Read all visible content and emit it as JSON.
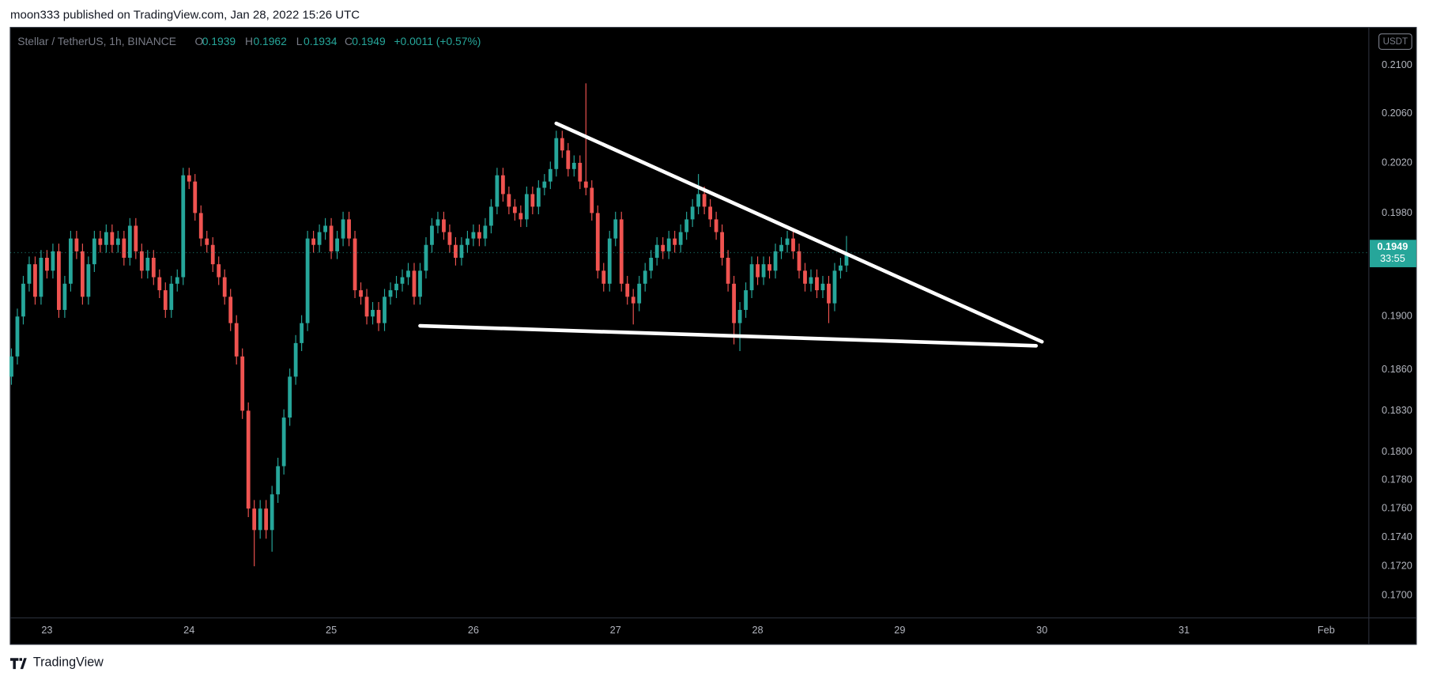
{
  "header": {
    "published": "moon333 published on TradingView.com, Jan 28, 2022 15:26 UTC"
  },
  "footer": {
    "brand": "TradingView"
  },
  "chart_data": {
    "type": "candlestick",
    "title": "Stellar / TetherUS, 1h, BINANCE",
    "ohlc_letters": [
      "O",
      "H",
      "L",
      "C"
    ],
    "change": "+0.0011 (+0.57%)",
    "currency": "USDT",
    "countdown": "33:55",
    "up_color": "#26a69a",
    "down_color": "#ef5350",
    "log_scale": true,
    "grid": false,
    "x": [
      -6,
      -5,
      -4,
      -3,
      -2,
      -1,
      0,
      1,
      2,
      3,
      4,
      5,
      6,
      7,
      8,
      9,
      10,
      11,
      12,
      13,
      14,
      15,
      16,
      17,
      18,
      19,
      20,
      21,
      22,
      23,
      24,
      25,
      26,
      27,
      28,
      29,
      30,
      31,
      32,
      33,
      34,
      35,
      36,
      37,
      38,
      39,
      40,
      41,
      42,
      43,
      44,
      45,
      46,
      47,
      48,
      49,
      50,
      51,
      52,
      53,
      54,
      55,
      56,
      57,
      58,
      59,
      60,
      61,
      62,
      63,
      64,
      65,
      66,
      67,
      68,
      69,
      70,
      71,
      72,
      73,
      74,
      75,
      76,
      77,
      78,
      79,
      80,
      81,
      82,
      83,
      84,
      85,
      86,
      87,
      88,
      89,
      90,
      91,
      92,
      93,
      94,
      95,
      96,
      97,
      98,
      99,
      100,
      101,
      102,
      103,
      104,
      105,
      106,
      107,
      108,
      109,
      110,
      111,
      112,
      113,
      114,
      115,
      116,
      117,
      118,
      119,
      120,
      121,
      122,
      123,
      124,
      125,
      126,
      127,
      128,
      129,
      130,
      131,
      132,
      133,
      134,
      135
    ],
    "open": [
      0.1855,
      0.187,
      0.19,
      0.1925,
      0.194,
      0.1915,
      0.1945,
      0.1935,
      0.195,
      0.1905,
      0.1925,
      0.196,
      0.195,
      0.1915,
      0.194,
      0.196,
      0.1955,
      0.1965,
      0.1955,
      0.196,
      0.1945,
      0.197,
      0.195,
      0.1935,
      0.1945,
      0.193,
      0.192,
      0.1905,
      0.1925,
      0.193,
      0.201,
      0.2005,
      0.198,
      0.196,
      0.1955,
      0.194,
      0.193,
      0.1915,
      0.1895,
      0.187,
      0.183,
      0.176,
      0.1745,
      0.176,
      0.1745,
      0.177,
      0.179,
      0.1825,
      0.1855,
      0.188,
      0.1895,
      0.196,
      0.1955,
      0.1965,
      0.197,
      0.195,
      0.196,
      0.1975,
      0.196,
      0.192,
      0.1915,
      0.19,
      0.1905,
      0.1895,
      0.1915,
      0.192,
      0.1925,
      0.193,
      0.1935,
      0.1915,
      0.1935,
      0.1955,
      0.197,
      0.1975,
      0.1965,
      0.1955,
      0.1945,
      0.1955,
      0.196,
      0.1965,
      0.196,
      0.197,
      0.1985,
      0.201,
      0.1995,
      0.1985,
      0.198,
      0.1975,
      0.1995,
      0.1985,
      0.2,
      0.2005,
      0.2015,
      0.204,
      0.203,
      0.2015,
      0.202,
      0.2005,
      0.2,
      0.198,
      0.1935,
      0.1925,
      0.196,
      0.1975,
      0.1925,
      0.1915,
      0.191,
      0.1925,
      0.1935,
      0.1945,
      0.1955,
      0.195,
      0.196,
      0.1955,
      0.1965,
      0.1975,
      0.1985,
      0.1995,
      0.1985,
      0.1975,
      0.1965,
      0.1945,
      0.1925,
      0.1895,
      0.1905,
      0.192,
      0.194,
      0.193,
      0.194,
      0.1935,
      0.195,
      0.1955,
      0.196,
      0.195,
      0.1935,
      0.1925,
      0.193,
      0.192,
      0.1925,
      0.191,
      0.1935,
      0.1939
    ],
    "high": [
      0.1876,
      0.1906,
      0.1931,
      0.1946,
      0.1946,
      0.1951,
      0.1951,
      0.1956,
      0.1956,
      0.1931,
      0.1966,
      0.1966,
      0.1956,
      0.1946,
      0.1966,
      0.1966,
      0.1971,
      0.1971,
      0.1966,
      0.1966,
      0.1976,
      0.1976,
      0.1956,
      0.1951,
      0.1951,
      0.1936,
      0.1926,
      0.1931,
      0.1936,
      0.2016,
      0.2016,
      0.2011,
      0.1986,
      0.1966,
      0.1961,
      0.1946,
      0.1936,
      0.1921,
      0.1901,
      0.1876,
      0.1836,
      0.1766,
      0.1766,
      0.1766,
      0.1776,
      0.1796,
      0.1831,
      0.1861,
      0.1886,
      0.1901,
      0.1966,
      0.1966,
      0.1971,
      0.1976,
      0.1976,
      0.1966,
      0.1981,
      0.1981,
      0.1966,
      0.1926,
      0.1921,
      0.1911,
      0.1911,
      0.1921,
      0.1926,
      0.1931,
      0.1936,
      0.1941,
      0.1941,
      0.1941,
      0.1961,
      0.1976,
      0.1981,
      0.1981,
      0.1971,
      0.1961,
      0.1961,
      0.1966,
      0.1971,
      0.1971,
      0.1976,
      0.1991,
      0.2016,
      0.2016,
      0.2001,
      0.1991,
      0.1986,
      0.2001,
      0.2001,
      0.2006,
      0.2011,
      0.2021,
      0.2046,
      0.2046,
      0.2036,
      0.2026,
      0.2026,
      0.2085,
      0.2006,
      0.1986,
      0.1941,
      0.1966,
      0.1981,
      0.1981,
      0.1931,
      0.1921,
      0.1931,
      0.1941,
      0.1951,
      0.1961,
      0.1961,
      0.1966,
      0.1966,
      0.1971,
      0.1981,
      0.1991,
      0.2011,
      0.2001,
      0.1991,
      0.1981,
      0.1971,
      0.1951,
      0.1931,
      0.1911,
      0.1926,
      0.1946,
      0.1946,
      0.1946,
      0.1946,
      0.1956,
      0.1961,
      0.1966,
      0.1966,
      0.1956,
      0.1941,
      0.1936,
      0.1936,
      0.1931,
      0.1931,
      0.1941,
      0.1945,
      0.1962
    ],
    "low": [
      0.1849,
      0.1864,
      0.1894,
      0.1919,
      0.1909,
      0.1909,
      0.1929,
      0.1929,
      0.1899,
      0.1899,
      0.1919,
      0.1944,
      0.1909,
      0.1909,
      0.1934,
      0.1949,
      0.1949,
      0.1949,
      0.1949,
      0.1939,
      0.1939,
      0.1944,
      0.1929,
      0.1929,
      0.1924,
      0.1914,
      0.1899,
      0.1899,
      0.1919,
      0.1924,
      0.1999,
      0.1974,
      0.1954,
      0.1949,
      0.1934,
      0.1924,
      0.1909,
      0.1889,
      0.1864,
      0.1824,
      0.1754,
      0.172,
      0.1739,
      0.1739,
      0.173,
      0.1764,
      0.1784,
      0.1819,
      0.1849,
      0.1874,
      0.1889,
      0.1949,
      0.1949,
      0.1959,
      0.1944,
      0.1944,
      0.1954,
      0.1954,
      0.1914,
      0.1909,
      0.1894,
      0.1894,
      0.1889,
      0.1889,
      0.1909,
      0.1914,
      0.1919,
      0.1924,
      0.1909,
      0.1909,
      0.1929,
      0.1949,
      0.1964,
      0.1959,
      0.1949,
      0.1939,
      0.1939,
      0.1949,
      0.1954,
      0.1954,
      0.1954,
      0.1964,
      0.1979,
      0.1989,
      0.1979,
      0.1974,
      0.1969,
      0.1969,
      0.1979,
      0.1979,
      0.1994,
      0.1999,
      0.2009,
      0.2024,
      0.2009,
      0.2009,
      0.1999,
      0.1994,
      0.1974,
      0.1929,
      0.1919,
      0.1919,
      0.1954,
      0.1919,
      0.1909,
      0.1894,
      0.1904,
      0.1919,
      0.1929,
      0.1939,
      0.1944,
      0.1944,
      0.1949,
      0.1949,
      0.1959,
      0.1969,
      0.1979,
      0.1979,
      0.1969,
      0.1959,
      0.1939,
      0.1919,
      0.1879,
      0.1874,
      0.1899,
      0.1914,
      0.1924,
      0.1924,
      0.1929,
      0.1929,
      0.1944,
      0.1949,
      0.1944,
      0.1929,
      0.1919,
      0.1919,
      0.1914,
      0.1914,
      0.1895,
      0.1904,
      0.1929,
      0.1934
    ],
    "close": [
      0.187,
      0.19,
      0.1925,
      0.194,
      0.1915,
      0.1945,
      0.1935,
      0.195,
      0.1905,
      0.1925,
      0.196,
      0.195,
      0.1915,
      0.194,
      0.196,
      0.1955,
      0.1965,
      0.1955,
      0.196,
      0.1945,
      0.197,
      0.195,
      0.1935,
      0.1945,
      0.193,
      0.192,
      0.1905,
      0.1925,
      0.193,
      0.201,
      0.2005,
      0.198,
      0.196,
      0.1955,
      0.194,
      0.193,
      0.1915,
      0.1895,
      0.187,
      0.183,
      0.176,
      0.1745,
      0.176,
      0.1745,
      0.177,
      0.179,
      0.1825,
      0.1855,
      0.188,
      0.1895,
      0.196,
      0.1955,
      0.1965,
      0.197,
      0.195,
      0.196,
      0.1975,
      0.196,
      0.192,
      0.1915,
      0.19,
      0.1905,
      0.1895,
      0.1915,
      0.192,
      0.1925,
      0.193,
      0.1935,
      0.1915,
      0.1935,
      0.1955,
      0.197,
      0.1975,
      0.1965,
      0.1955,
      0.1945,
      0.1955,
      0.196,
      0.1965,
      0.196,
      0.197,
      0.1985,
      0.201,
      0.1995,
      0.1985,
      0.198,
      0.1975,
      0.1995,
      0.1985,
      0.2,
      0.2005,
      0.2015,
      0.204,
      0.203,
      0.2015,
      0.202,
      0.2005,
      0.2,
      0.198,
      0.1935,
      0.1925,
      0.196,
      0.1975,
      0.1925,
      0.1915,
      0.191,
      0.1925,
      0.1935,
      0.1945,
      0.1955,
      0.195,
      0.196,
      0.1955,
      0.1965,
      0.1975,
      0.1985,
      0.1995,
      0.1985,
      0.1975,
      0.1965,
      0.1945,
      0.1925,
      0.1895,
      0.1905,
      0.192,
      0.194,
      0.193,
      0.194,
      0.1935,
      0.195,
      0.1955,
      0.196,
      0.195,
      0.1935,
      0.1925,
      0.193,
      0.192,
      0.1925,
      0.191,
      0.1935,
      0.1939,
      0.1949
    ],
    "xlim": [
      -6.2,
      223.2
    ],
    "xticks": [
      {
        "value": 0,
        "label": "23"
      },
      {
        "value": 24,
        "label": "24"
      },
      {
        "value": 48,
        "label": "25"
      },
      {
        "value": 72,
        "label": "26"
      },
      {
        "value": 96,
        "label": "27"
      },
      {
        "value": 120,
        "label": "28"
      },
      {
        "value": 144,
        "label": "29"
      },
      {
        "value": 168,
        "label": "30"
      },
      {
        "value": 192,
        "label": "31"
      },
      {
        "value": 216,
        "label": "Feb"
      }
    ],
    "ylim": [
      0.1685,
      0.2132
    ],
    "yticks": [
      {
        "value": 0.21,
        "label": "0.2100"
      },
      {
        "value": 0.206,
        "label": "0.2060"
      },
      {
        "value": 0.202,
        "label": "0.2020"
      },
      {
        "value": 0.198,
        "label": "0.1980"
      },
      {
        "value": 0.19,
        "label": "0.1900"
      },
      {
        "value": 0.186,
        "label": "0.1860"
      },
      {
        "value": 0.183,
        "label": "0.1830"
      },
      {
        "value": 0.18,
        "label": "0.1800"
      },
      {
        "value": 0.178,
        "label": "0.1780"
      },
      {
        "value": 0.176,
        "label": "0.1760"
      },
      {
        "value": 0.174,
        "label": "0.1740"
      },
      {
        "value": 0.172,
        "label": "0.1720"
      },
      {
        "value": 0.17,
        "label": "0.1700"
      }
    ],
    "trendlines": [
      {
        "color": "#ffffff",
        "x": [
          86,
          168
        ],
        "y": [
          0.2052,
          0.1881
        ]
      },
      {
        "color": "#ffffff",
        "x": [
          63,
          167
        ],
        "y": [
          0.1893,
          0.1878
        ]
      }
    ]
  }
}
